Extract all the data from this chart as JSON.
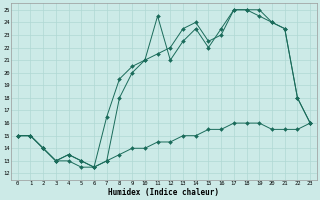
{
  "xlabel": "Humidex (Indice chaleur)",
  "bg_color": "#cceae7",
  "line_color": "#1a6b5a",
  "grid_color": "#b0d8d4",
  "xlim": [
    -0.5,
    23.5
  ],
  "ylim": [
    11.5,
    25.5
  ],
  "yticks": [
    12,
    13,
    14,
    15,
    16,
    17,
    18,
    19,
    20,
    21,
    22,
    23,
    24,
    25
  ],
  "xticks": [
    0,
    1,
    2,
    3,
    4,
    5,
    6,
    7,
    8,
    9,
    10,
    11,
    12,
    13,
    14,
    15,
    16,
    17,
    18,
    19,
    20,
    21,
    22,
    23
  ],
  "series1_x": [
    0,
    1,
    2,
    3,
    4,
    5,
    6,
    7,
    8,
    9,
    10,
    11,
    12,
    13,
    14,
    15,
    16,
    17,
    18,
    19,
    20,
    21,
    22,
    23
  ],
  "series1_y": [
    15,
    15,
    14,
    13,
    13,
    12.5,
    12.5,
    13,
    13.5,
    14,
    14,
    14.5,
    14.5,
    15,
    15,
    15.5,
    15.5,
    16,
    16,
    16,
    15.5,
    15.5,
    15.5,
    16
  ],
  "series2_x": [
    0,
    1,
    2,
    3,
    4,
    5,
    6,
    7,
    8,
    9,
    10,
    11,
    12,
    13,
    14,
    15,
    16,
    17,
    18,
    19,
    20,
    21,
    22,
    23
  ],
  "series2_y": [
    15,
    15,
    14,
    13,
    13.5,
    13,
    12.5,
    16.5,
    19.5,
    20.5,
    21,
    24.5,
    21,
    22.5,
    23.5,
    22,
    23.5,
    25,
    25,
    25,
    24,
    23.5,
    18,
    16
  ],
  "series3_x": [
    0,
    1,
    2,
    3,
    4,
    5,
    6,
    7,
    8,
    9,
    10,
    11,
    12,
    13,
    14,
    15,
    16,
    17,
    18,
    19,
    20,
    21,
    22,
    23
  ],
  "series3_y": [
    15,
    15,
    14,
    13,
    13.5,
    13,
    12.5,
    13,
    18,
    20,
    21,
    21.5,
    22,
    23.5,
    24,
    22.5,
    23,
    25,
    25,
    24.5,
    24,
    23.5,
    18,
    16
  ]
}
